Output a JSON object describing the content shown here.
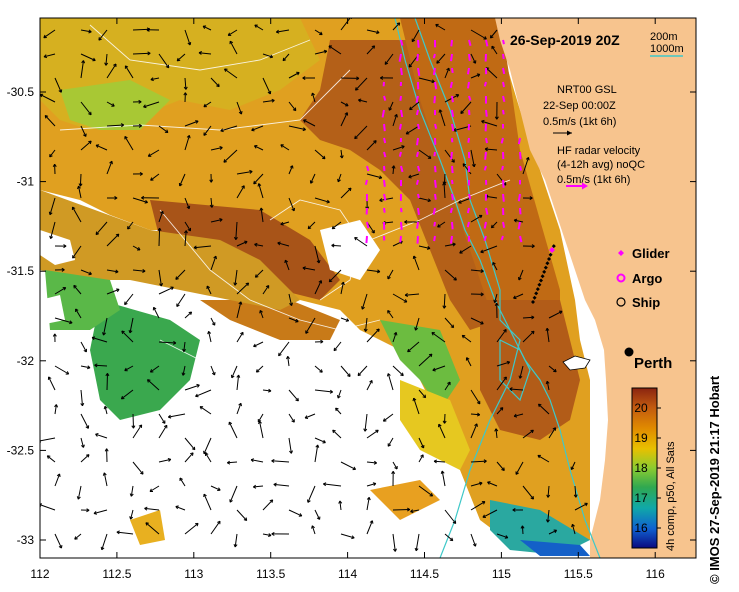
{
  "map": {
    "title": "26-Sep-2019 20Z",
    "credit": "© IMOS 27-Sep-2019 21:17 Hobart",
    "isobath_labels": [
      "200m",
      "1000m"
    ],
    "isobath_color": "#3fc8c8",
    "land_color": "#f7c48e",
    "model_legend": {
      "line1": "NRT00 GSL",
      "line2": "22-Sep 00:00Z",
      "line3": "0.5m/s (1kt 6h)"
    },
    "radar_legend": {
      "line1": "HF radar velocity",
      "line2": "(4-12h avg) noQC",
      "line3": "0.5m/s (1kt 6h)"
    },
    "radar_color": "#ff00ff",
    "platforms": [
      {
        "label": "Glider",
        "symbol": "diamond"
      },
      {
        "label": "Argo",
        "symbol": "circle-magenta"
      },
      {
        "label": "Ship",
        "symbol": "circle-open"
      }
    ],
    "city": "Perth",
    "x_ticks": [
      "112",
      "112.5",
      "113",
      "113.5",
      "114",
      "114.5",
      "115",
      "115.5",
      "116"
    ],
    "y_ticks": [
      "-30.5",
      "-31",
      "-31.5",
      "-32",
      "-32.5",
      "-33"
    ],
    "colorbar": {
      "label": "4h comp, p50, All Sats",
      "ticks": [
        "20",
        "19",
        "18",
        "17",
        "16"
      ],
      "colors": [
        "#f2f2f2",
        "#f0e000",
        "#e09000",
        "#c86010",
        "#9c4a14",
        "#8cc830",
        "#2aa050",
        "#12a8a0",
        "#1050c0",
        "#0c0c8c"
      ]
    }
  }
}
